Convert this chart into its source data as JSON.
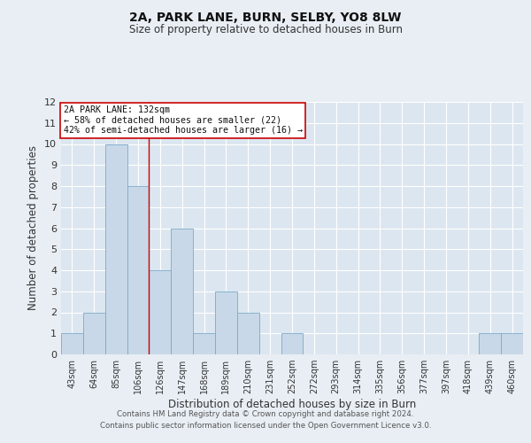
{
  "title": "2A, PARK LANE, BURN, SELBY, YO8 8LW",
  "subtitle": "Size of property relative to detached houses in Burn",
  "xlabel": "Distribution of detached houses by size in Burn",
  "ylabel": "Number of detached properties",
  "bin_labels": [
    "43sqm",
    "64sqm",
    "85sqm",
    "106sqm",
    "126sqm",
    "147sqm",
    "168sqm",
    "189sqm",
    "210sqm",
    "231sqm",
    "252sqm",
    "272sqm",
    "293sqm",
    "314sqm",
    "335sqm",
    "356sqm",
    "377sqm",
    "397sqm",
    "418sqm",
    "439sqm",
    "460sqm"
  ],
  "bin_values": [
    1,
    2,
    10,
    8,
    4,
    6,
    1,
    3,
    2,
    0,
    1,
    0,
    0,
    0,
    0,
    0,
    0,
    0,
    0,
    1,
    1
  ],
  "bar_color": "#c8d8e8",
  "bar_edge_color": "#7aaac8",
  "bar_linewidth": 0.6,
  "vline_color": "#cc0000",
  "vline_pos": 3.5,
  "annotation_title": "2A PARK LANE: 132sqm",
  "annotation_line1": "← 58% of detached houses are smaller (22)",
  "annotation_line2": "42% of semi-detached houses are larger (16) →",
  "annotation_box_color": "#ffffff",
  "annotation_box_edge_color": "#cc0000",
  "ylim": [
    0,
    12
  ],
  "yticks": [
    0,
    1,
    2,
    3,
    4,
    5,
    6,
    7,
    8,
    9,
    10,
    11,
    12
  ],
  "bg_color": "#e8eef4",
  "plot_bg_color": "#dce6f0",
  "footer1": "Contains HM Land Registry data © Crown copyright and database right 2024.",
  "footer2": "Contains public sector information licensed under the Open Government Licence v3.0."
}
